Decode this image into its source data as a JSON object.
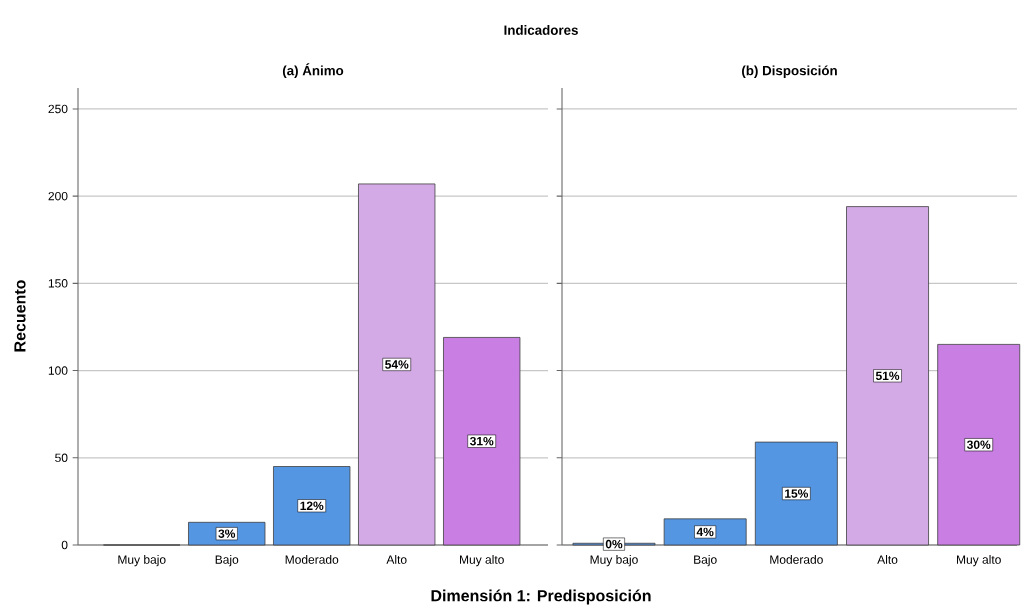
{
  "chart_data": [
    {
      "type": "bar",
      "title": "(a) Ánimo",
      "xlabel": "Dimensión 1: Predisposición",
      "ylabel": "Recuento",
      "categories": [
        "Muy bajo",
        "Bajo",
        "Moderado",
        "Alto",
        "Muy alto"
      ],
      "values": [
        0,
        13,
        45,
        207,
        119
      ],
      "colors": [
        "#5596e3",
        "#5596e3",
        "#5596e3",
        "#d3aae6",
        "#c97ee3"
      ],
      "ylim": [
        0,
        262
      ],
      "yticks": [
        0,
        50,
        100,
        150,
        200,
        250
      ],
      "grid": "y",
      "annotations": [
        "Indicadores",
        {
          "text": "3%",
          "x": "Bajo",
          "y": 6.5
        },
        {
          "text": "12%",
          "x": "Moderado",
          "y": 22.5
        },
        {
          "text": "54%",
          "x": "Alto",
          "y": 103.5
        },
        {
          "text": "31%",
          "x": "Muy alto",
          "y": 59.5
        }
      ]
    },
    {
      "type": "bar",
      "title": "(b) Disposición",
      "categories": [
        "Muy bajo",
        "Bajo",
        "Moderado",
        "Alto",
        "Muy alto"
      ],
      "values": [
        1,
        15,
        59,
        194,
        115
      ],
      "colors": [
        "#5596e3",
        "#5596e3",
        "#5596e3",
        "#d3aae6",
        "#c97ee3"
      ],
      "ylim": [
        0,
        262
      ],
      "yticks": [
        0,
        50,
        100,
        150,
        200,
        250
      ],
      "grid": "y",
      "tick_labels": "x",
      "annotations": [
        {
          "text": "0%",
          "x": "Muy bajo",
          "y": 0.5
        },
        {
          "text": "4%",
          "x": "Bajo",
          "y": 7.5
        },
        {
          "text": "15%",
          "x": "Moderado",
          "y": 29.5
        },
        {
          "text": "51%",
          "x": "Alto",
          "y": 97
        },
        {
          "text": "30%",
          "x": "Muy alto",
          "y": 57.5
        }
      ]
    }
  ]
}
